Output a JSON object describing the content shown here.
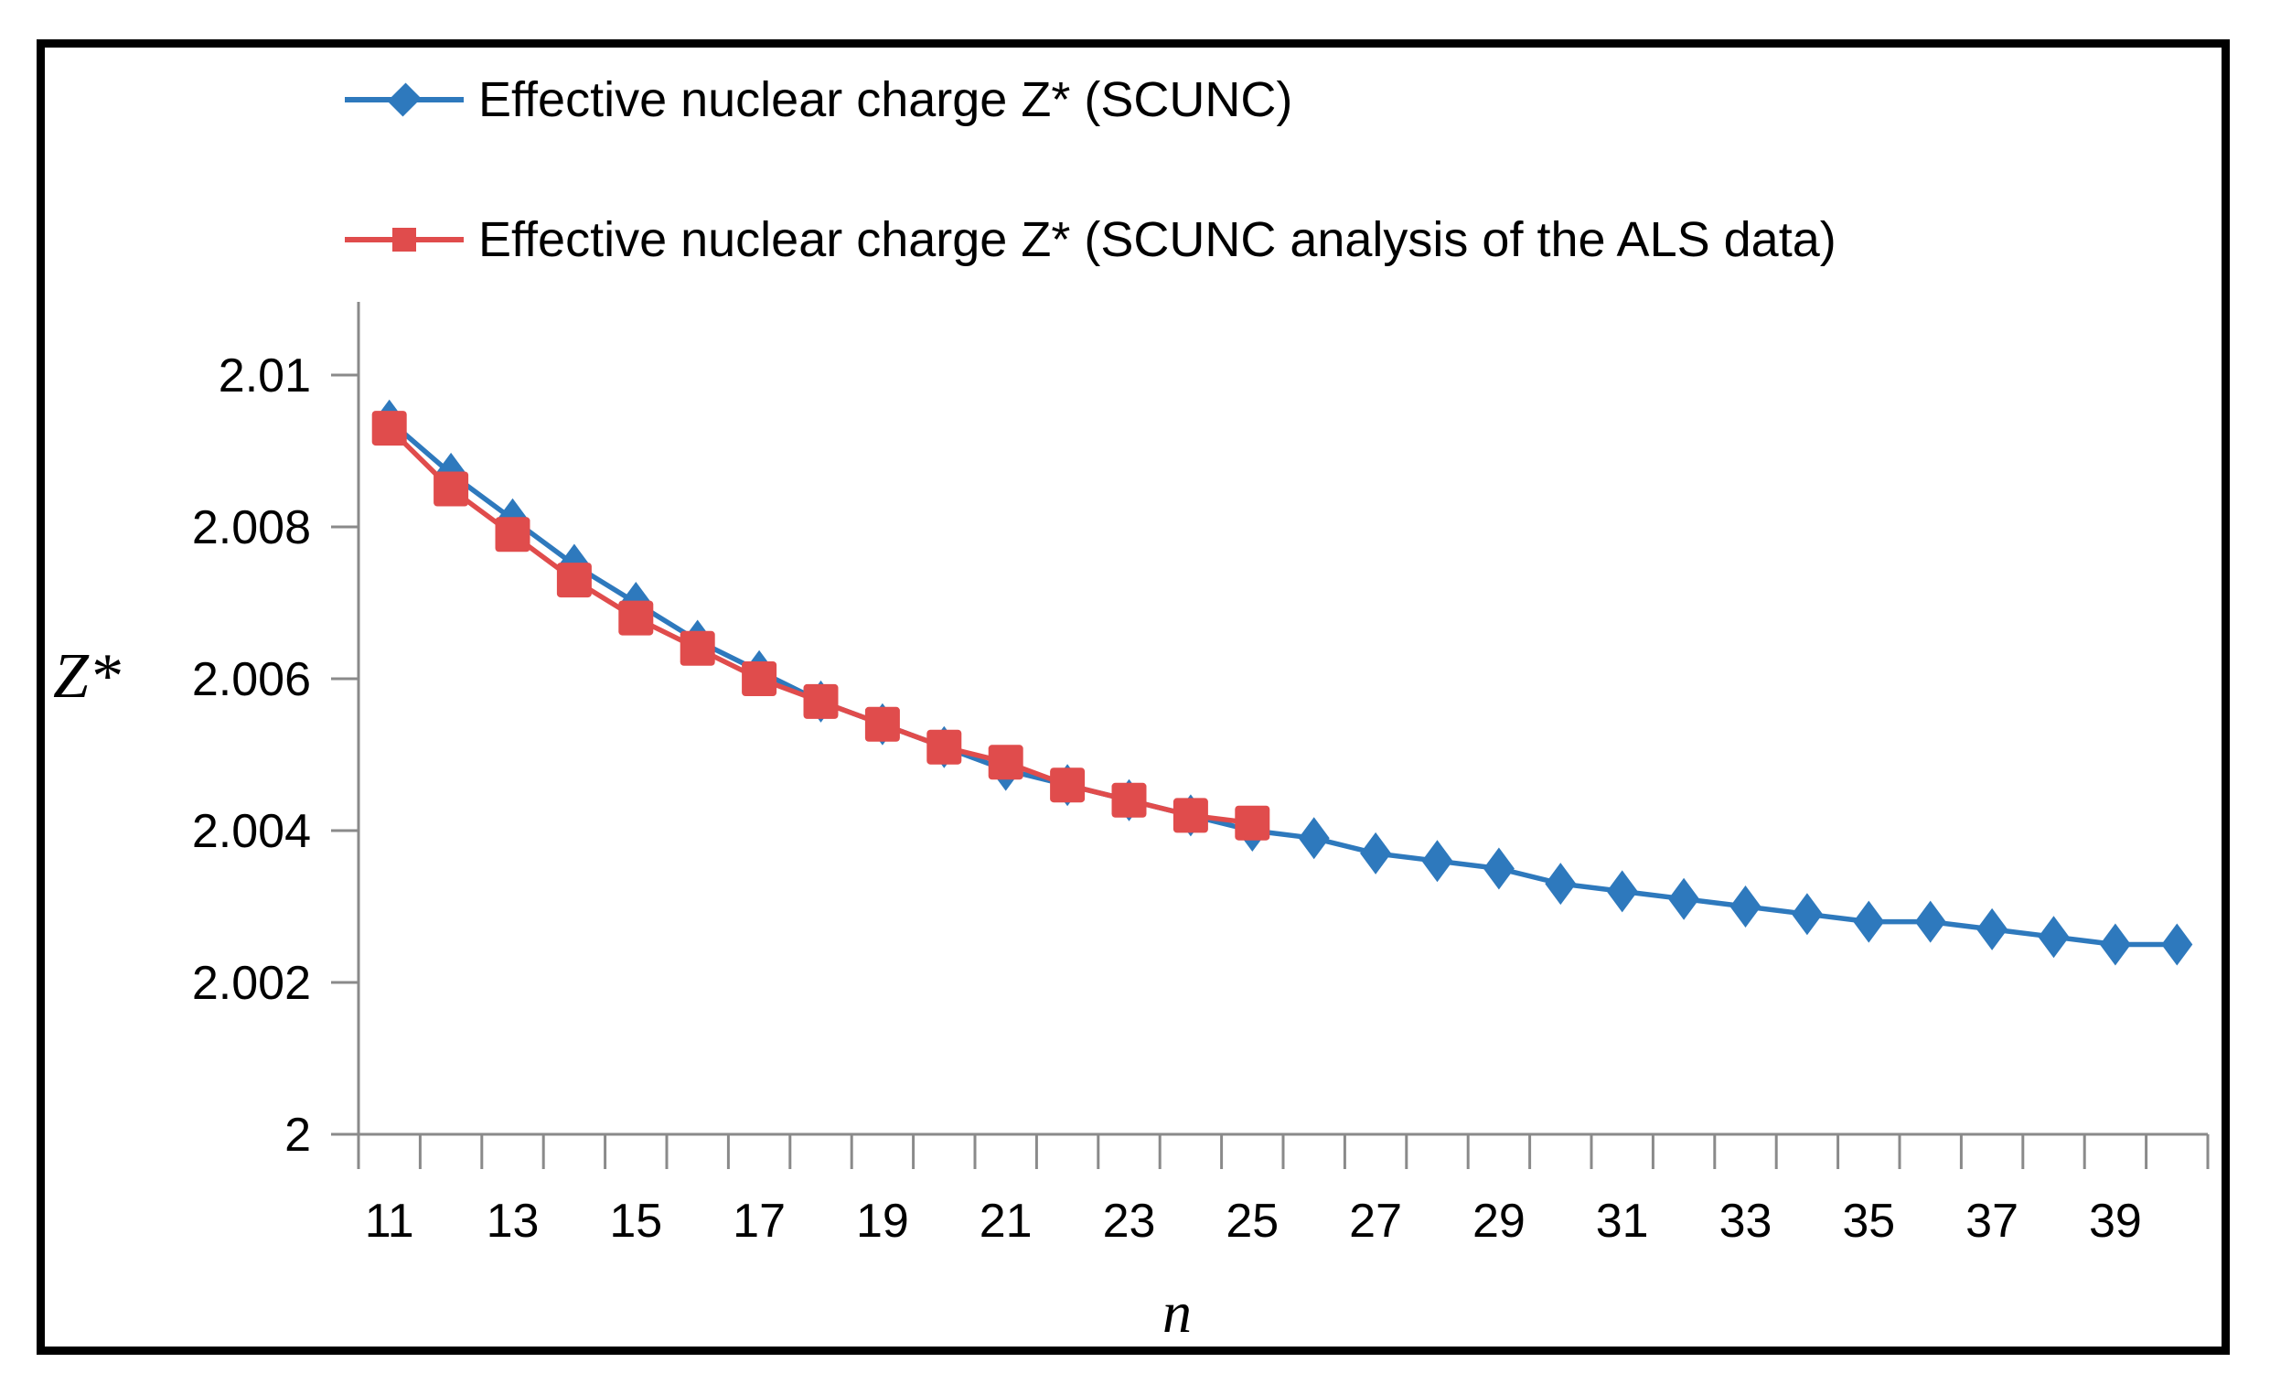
{
  "figure": {
    "border_color": "#000000",
    "background": "#ffffff",
    "axis_color": "#8a8a8a",
    "text_color": "#000000"
  },
  "legend": {
    "items": [
      {
        "label": "Effective nuclear charge Z* (SCUNC)",
        "marker": "diamond",
        "color": "#2e79bd"
      },
      {
        "label": "Effective nuclear charge Z* (SCUNC analysis of the ALS data)",
        "marker": "square",
        "color": "#e04c4c"
      }
    ]
  },
  "chart_data": {
    "type": "line",
    "title": "",
    "xlabel": "n",
    "ylabel": "Z*",
    "grid": false,
    "legend_position": "top-left",
    "xlim": [
      10.5,
      40.5
    ],
    "ylim": [
      2.0,
      2.011
    ],
    "x": [
      11,
      12,
      13,
      14,
      15,
      16,
      17,
      18,
      19,
      20,
      21,
      22,
      23,
      24,
      25,
      26,
      27,
      28,
      29,
      30,
      31,
      32,
      33,
      34,
      35,
      36,
      37,
      38,
      39,
      40
    ],
    "yticks": [
      2.0,
      2.002,
      2.004,
      2.006,
      2.008,
      2.01
    ],
    "ytick_labels": [
      "2",
      "2.002",
      "2.004",
      "2.006",
      "2.008",
      "2.01"
    ],
    "xtick_labels": [
      "11",
      "13",
      "15",
      "17",
      "19",
      "21",
      "23",
      "25",
      "27",
      "29",
      "31",
      "33",
      "35",
      "37",
      "39"
    ],
    "series": [
      {
        "name": "Effective nuclear charge Z* (SCUNC)",
        "marker": "diamond",
        "color": "#2e79bd",
        "values": [
          2.0094,
          2.0087,
          2.0081,
          2.0075,
          2.007,
          2.0065,
          2.0061,
          2.0057,
          2.0054,
          2.0051,
          2.0048,
          2.0046,
          2.0044,
          2.0042,
          2.004,
          2.0039,
          2.0037,
          2.0036,
          2.0035,
          2.0033,
          2.0032,
          2.0031,
          2.003,
          2.0029,
          2.0028,
          2.0028,
          2.0027,
          2.0026,
          2.0025,
          2.0025
        ]
      },
      {
        "name": "Effective nuclear charge Z* (SCUNC analysis of the ALS data)",
        "marker": "square",
        "color": "#e04c4c",
        "values": [
          2.0093,
          2.0085,
          2.0079,
          2.0073,
          2.0068,
          2.0064,
          2.006,
          2.0057,
          2.0054,
          2.0051,
          2.0049,
          2.0046,
          2.0044,
          2.0042,
          2.0041
        ]
      }
    ]
  }
}
